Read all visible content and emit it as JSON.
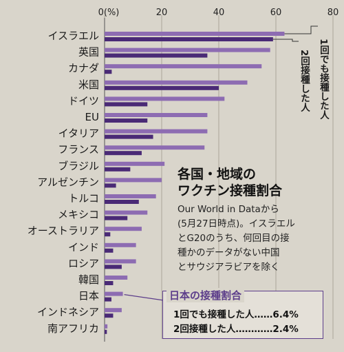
{
  "chart_data": {
    "type": "bar",
    "orientation": "horizontal",
    "title": "各国・地域のワクチン接種割合",
    "unit_label": "(%)",
    "xlim": [
      0,
      80
    ],
    "xticks": [
      "0",
      "20",
      "40",
      "60",
      "80"
    ],
    "categories": [
      "イスラエル",
      "英国",
      "カナダ",
      "米国",
      "ドイツ",
      "EU",
      "イタリア",
      "フランス",
      "ブラジル",
      "アルゼンチン",
      "トルコ",
      "メキシコ",
      "オーストラリア",
      "インド",
      "ロシア",
      "韓国",
      "日本",
      "インドネシア",
      "南アフリカ"
    ],
    "series": [
      {
        "name": "1回でも接種した人",
        "color": "#8d6cb2",
        "values": [
          63.0,
          58.0,
          55.0,
          50.0,
          42.0,
          36.0,
          36.0,
          35.0,
          21.0,
          20.0,
          18.0,
          15.0,
          13.0,
          11.0,
          11.0,
          8.0,
          6.4,
          6.0,
          1.0
        ]
      },
      {
        "name": "2回接種した人",
        "color": "#4a2a76",
        "values": [
          59.0,
          36.0,
          2.5,
          40.0,
          15.0,
          15.0,
          17.0,
          13.0,
          9.0,
          4.0,
          12.0,
          8.0,
          2.0,
          3.0,
          6.0,
          3.0,
          2.4,
          3.0,
          0.8
        ]
      }
    ]
  },
  "legend": {
    "first_dose": "1回でも接種した人",
    "second_dose": "2回接種した人"
  },
  "title": {
    "line1": "各国・地域の",
    "line2": "ワクチン接種割合"
  },
  "description": {
    "lines": [
      "Our World in Dataから",
      "(5月27日時点)。イスラエル",
      "とG20のうち、何回目の接",
      "種かのデータがない中国",
      "とサウジアラビアを除く"
    ]
  },
  "japan_box": {
    "title": "日本の接種割合",
    "row1": "1回でも接種した人……6.4%",
    "row2": "2回接種した人…………2.4%"
  }
}
